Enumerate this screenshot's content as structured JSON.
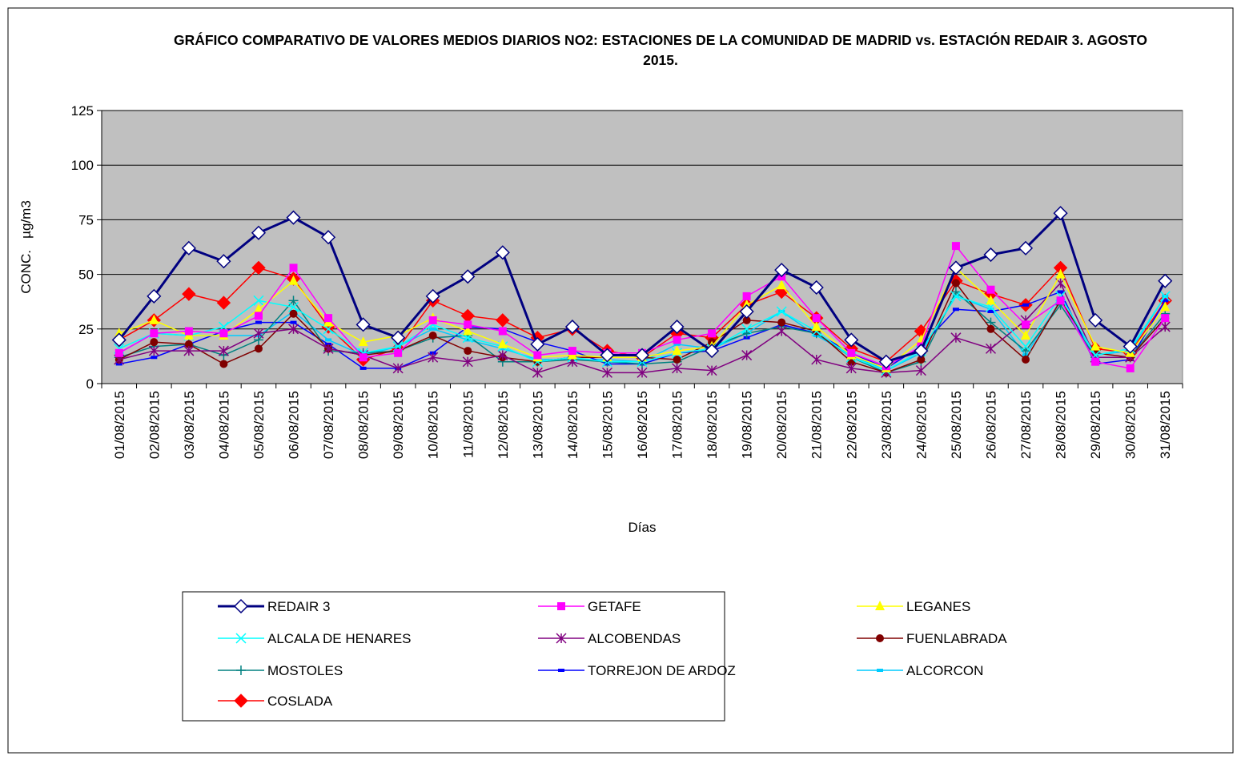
{
  "chart_data": {
    "type": "line",
    "title": "GRÁFICO COMPARATIVO DE VALORES MEDIOS DIARIOS NO2: ESTACIONES DE LA COMUNIDAD DE MADRID vs. ESTACIÓN REDAIR 3. AGOSTO 2015.",
    "x_label": "Días",
    "y_label": "CONC.   µg/m3",
    "categories": [
      "01/08/2015",
      "02/08/2015",
      "03/08/2015",
      "04/08/2015",
      "05/08/2015",
      "06/08/2015",
      "07/08/2015",
      "08/08/2015",
      "09/08/2015",
      "10/08/2015",
      "11/08/2015",
      "12/08/2015",
      "13/08/2015",
      "14/08/2015",
      "15/08/2015",
      "16/08/2015",
      "17/08/2015",
      "18/08/2015",
      "19/08/2015",
      "20/08/2015",
      "21/08/2015",
      "22/08/2015",
      "23/08/2015",
      "24/08/2015",
      "25/08/2015",
      "26/08/2015",
      "27/08/2015",
      "28/08/2015",
      "29/08/2015",
      "30/08/2015",
      "31/08/2015"
    ],
    "ylim": [
      0,
      125
    ],
    "yticks": [
      0,
      25,
      50,
      75,
      100,
      125
    ],
    "grid": true,
    "legend": "bottom",
    "series": [
      {
        "name": "REDAIR 3",
        "color": "#000080",
        "marker": "diamond",
        "line_width": 3,
        "values": [
          20,
          40,
          62,
          56,
          69,
          76,
          67,
          27,
          21,
          40,
          49,
          60,
          18,
          26,
          13,
          13,
          26,
          15,
          33,
          52,
          44,
          20,
          10,
          15,
          53,
          59,
          62,
          78,
          29,
          17,
          47
        ]
      },
      {
        "name": "GETAFE",
        "color": "#ff00ff",
        "marker": "square",
        "line_width": 1.5,
        "values": [
          14,
          23,
          24,
          23,
          31,
          53,
          30,
          12,
          14,
          29,
          27,
          24,
          13,
          15,
          14,
          14,
          20,
          23,
          40,
          49,
          30,
          14,
          8,
          17,
          63,
          43,
          27,
          38,
          10,
          7,
          30
        ]
      },
      {
        "name": "LEGANES",
        "color": "#ffff00",
        "marker": "triangle",
        "line_width": 1.5,
        "values": [
          23,
          29,
          22,
          22,
          34,
          47,
          28,
          19,
          22,
          30,
          24,
          18,
          12,
          13,
          12,
          12,
          15,
          17,
          36,
          45,
          26,
          13,
          7,
          20,
          53,
          38,
          22,
          50,
          17,
          14,
          35
        ]
      },
      {
        "name": "ALCALA DE HENARES",
        "color": "#00ffff",
        "marker": "x",
        "line_width": 1.5,
        "values": [
          16,
          23,
          22,
          26,
          38,
          35,
          25,
          14,
          17,
          27,
          21,
          17,
          10,
          12,
          10,
          10,
          14,
          16,
          25,
          33,
          24,
          12,
          6,
          15,
          40,
          35,
          17,
          40,
          13,
          16,
          40
        ]
      },
      {
        "name": "ALCOBENDAS",
        "color": "#800080",
        "marker": "star",
        "line_width": 1.5,
        "values": [
          11,
          15,
          15,
          15,
          23,
          25,
          16,
          13,
          7,
          12,
          10,
          13,
          5,
          10,
          5,
          5,
          7,
          6,
          13,
          24,
          11,
          7,
          5,
          6,
          21,
          16,
          29,
          46,
          12,
          12,
          26
        ]
      },
      {
        "name": "FUENLABRADA",
        "color": "#800000",
        "marker": "circle",
        "line_width": 1.5,
        "values": [
          11,
          19,
          18,
          9,
          16,
          32,
          16,
          13,
          15,
          22,
          15,
          12,
          10,
          12,
          12,
          12,
          11,
          19,
          29,
          28,
          24,
          10,
          5,
          11,
          46,
          25,
          11,
          38,
          14,
          12,
          30
        ]
      },
      {
        "name": "MOSTOLES",
        "color": "#008080",
        "marker": "plus",
        "line_width": 1.5,
        "values": [
          12,
          17,
          18,
          13,
          20,
          38,
          15,
          14,
          15,
          21,
          22,
          10,
          10,
          11,
          10,
          9,
          10,
          17,
          23,
          26,
          23,
          12,
          5,
          10,
          42,
          28,
          15,
          36,
          12,
          12,
          32
        ]
      },
      {
        "name": "TORREJON DE ARDOZ",
        "color": "#0000ff",
        "marker": "dash",
        "line_width": 1.5,
        "values": [
          9,
          12,
          18,
          24,
          28,
          28,
          18,
          7,
          7,
          14,
          26,
          25,
          19,
          15,
          9,
          9,
          14,
          15,
          21,
          27,
          23,
          14,
          7,
          17,
          34,
          33,
          36,
          42,
          9,
          11,
          38
        ]
      },
      {
        "name": "ALCORCON",
        "color": "#00ccff",
        "marker": "dash",
        "line_width": 1.5,
        "values": [
          14,
          23,
          22,
          22,
          22,
          33,
          20,
          13,
          17,
          25,
          20,
          16,
          11,
          11,
          11,
          10,
          18,
          16,
          23,
          33,
          22,
          13,
          6,
          14,
          40,
          34,
          13,
          38,
          13,
          15,
          40
        ]
      },
      {
        "name": "COSLADA",
        "color": "#ff0000",
        "marker": "diamond",
        "line_width": 1.5,
        "values": [
          20,
          29,
          41,
          37,
          53,
          48,
          26,
          11,
          16,
          38,
          31,
          29,
          21,
          25,
          15,
          12,
          23,
          21,
          36,
          42,
          30,
          16,
          10,
          24,
          47,
          41,
          36,
          53,
          16,
          14,
          38
        ]
      }
    ]
  }
}
